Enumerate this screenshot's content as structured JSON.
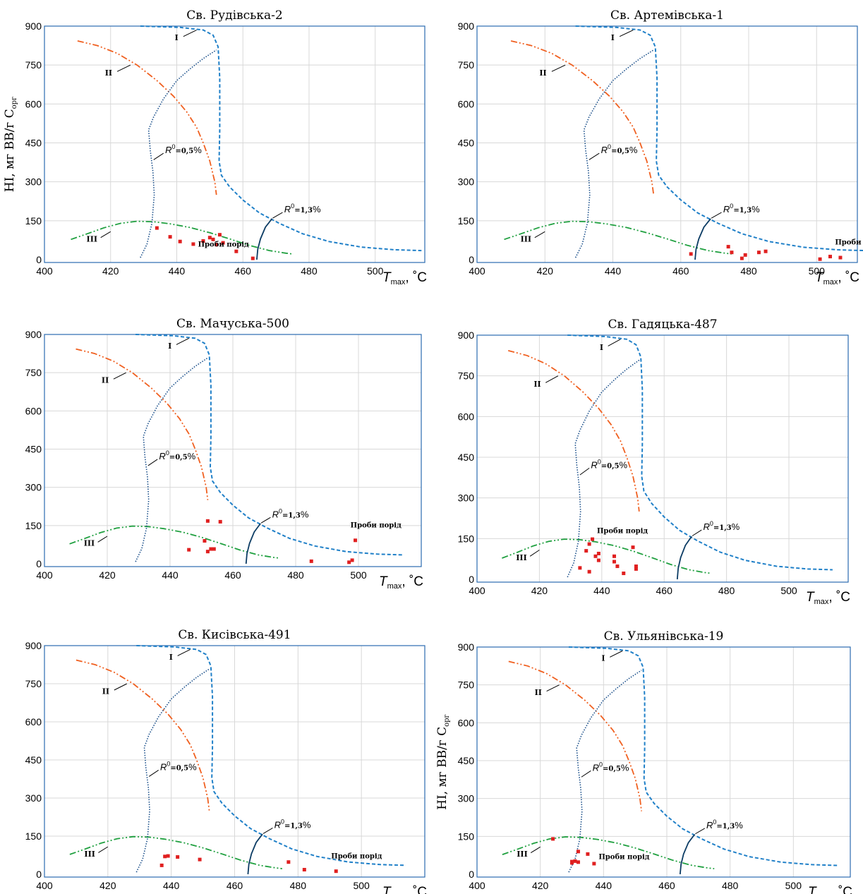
{
  "figure": {
    "colors": {
      "curve_I": "#2080c8",
      "curve_II": "#f06020",
      "curve_III": "#20a040",
      "ro05": "#1a4f8a",
      "ro13": "#0c3c64",
      "points": "#e02020",
      "frame": "#2b6cb0",
      "grid": "#d8d8d8"
    },
    "curve_labels": {
      "I": "I",
      "II": "II",
      "III": "III",
      "ro05_R": "R",
      "ro05_sup": "0",
      "ro05_mid": "=0,5",
      "ro05_pct": "%",
      "ro13_R": "R",
      "ro13_sup": "0",
      "ro13_mid": "=1,3",
      "ro13_pct": "%",
      "samples": "Проби порід"
    },
    "y_axis_label": {
      "main": "HI, мг ВВ/г С",
      "sub": "орг"
    },
    "x_axis_label": {
      "main": "T",
      "sub": "max",
      "unit": ", ˚C"
    }
  },
  "chart_data": [
    {
      "type": "scatter",
      "title": "Св. Рудівська-2",
      "xlim": [
        400,
        515
      ],
      "ylim": [
        0,
        900
      ],
      "x_ticks": [
        400,
        420,
        440,
        460,
        480,
        500
      ],
      "y_ticks": [
        0,
        150,
        300,
        450,
        600,
        750,
        900
      ],
      "show_ylabel": true,
      "series": [
        {
          "name": "Проби порід",
          "points": [
            [
              434,
              122
            ],
            [
              438,
              88
            ],
            [
              441,
              70
            ],
            [
              445,
              60
            ],
            [
              448,
              72
            ],
            [
              450,
              85
            ],
            [
              451,
              78
            ],
            [
              452,
              58
            ],
            [
              453,
              96
            ],
            [
              454,
              65
            ],
            [
              458,
              32
            ],
            [
              463,
              5
            ]
          ]
        }
      ]
    },
    {
      "type": "scatter",
      "title": "Св. Артемівська-1",
      "xlim": [
        400,
        512
      ],
      "ylim": [
        0,
        900
      ],
      "x_ticks": [
        400,
        420,
        440,
        460,
        480,
        500
      ],
      "y_ticks": [
        0,
        150,
        300,
        450,
        600,
        750,
        900
      ],
      "show_ylabel": false,
      "series": [
        {
          "name": "Проби порід",
          "points": [
            [
              463,
              22
            ],
            [
              474,
              50
            ],
            [
              475,
              28
            ],
            [
              478,
              5
            ],
            [
              479,
              18
            ],
            [
              483,
              28
            ],
            [
              485,
              32
            ],
            [
              501,
              2
            ],
            [
              504,
              12
            ],
            [
              507,
              8
            ]
          ]
        }
      ]
    },
    {
      "type": "scatter",
      "title": "Св. Мачуська-500",
      "xlim": [
        400,
        520
      ],
      "ylim": [
        0,
        900
      ],
      "x_ticks": [
        400,
        420,
        440,
        460,
        480,
        500
      ],
      "y_ticks": [
        0,
        150,
        300,
        450,
        600,
        750,
        900
      ],
      "show_ylabel": false,
      "series": [
        {
          "name": "Проби порід",
          "points": [
            [
              446,
              55
            ],
            [
              451,
              90
            ],
            [
              452,
              48
            ],
            [
              452,
              168
            ],
            [
              453,
              58
            ],
            [
              454,
              58
            ],
            [
              456,
              165
            ],
            [
              485,
              10
            ],
            [
              497,
              6
            ],
            [
              498,
              14
            ],
            [
              499,
              92
            ]
          ]
        }
      ]
    },
    {
      "type": "scatter",
      "title": "Св. Гадяцька-487",
      "xlim": [
        400,
        519
      ],
      "ylim": [
        0,
        900
      ],
      "x_ticks": [
        400,
        420,
        440,
        460,
        480,
        500
      ],
      "y_ticks": [
        0,
        150,
        300,
        450,
        600,
        750,
        900
      ],
      "show_ylabel": false,
      "series": [
        {
          "name": "Проби порід",
          "points": [
            [
              433,
              42
            ],
            [
              435,
              105
            ],
            [
              436,
              130
            ],
            [
              436,
              28
            ],
            [
              437,
              148
            ],
            [
              438,
              85
            ],
            [
              439,
              95
            ],
            [
              439,
              70
            ],
            [
              444,
              85
            ],
            [
              444,
              65
            ],
            [
              445,
              48
            ],
            [
              447,
              22
            ],
            [
              450,
              118
            ],
            [
              451,
              48
            ],
            [
              451,
              38
            ]
          ]
        }
      ]
    },
    {
      "type": "scatter",
      "title": "Св. Кисівська-491",
      "xlim": [
        400,
        520
      ],
      "ylim": [
        0,
        900
      ],
      "x_ticks": [
        400,
        420,
        440,
        460,
        480,
        500
      ],
      "y_ticks": [
        0,
        150,
        300,
        450,
        600,
        750,
        900
      ],
      "show_ylabel": false,
      "series": [
        {
          "name": "Проби порід",
          "points": [
            [
              437,
              35
            ],
            [
              438,
              70
            ],
            [
              439,
              72
            ],
            [
              442,
              68
            ],
            [
              449,
              58
            ],
            [
              477,
              48
            ],
            [
              482,
              18
            ],
            [
              492,
              12
            ]
          ]
        }
      ]
    },
    {
      "type": "scatter",
      "title": "Св. Ульянівська-19",
      "xlim": [
        400,
        518
      ],
      "ylim": [
        0,
        900
      ],
      "x_ticks": [
        400,
        420,
        440,
        460,
        480,
        500
      ],
      "y_ticks": [
        0,
        150,
        300,
        450,
        600,
        750,
        900
      ],
      "show_ylabel": true,
      "series": [
        {
          "name": "Проби порід",
          "points": [
            [
              424,
              140
            ],
            [
              430,
              45
            ],
            [
              430,
              50
            ],
            [
              431,
              52
            ],
            [
              432,
              90
            ],
            [
              432,
              48
            ],
            [
              435,
              80
            ],
            [
              437,
              42
            ]
          ]
        }
      ]
    }
  ]
}
